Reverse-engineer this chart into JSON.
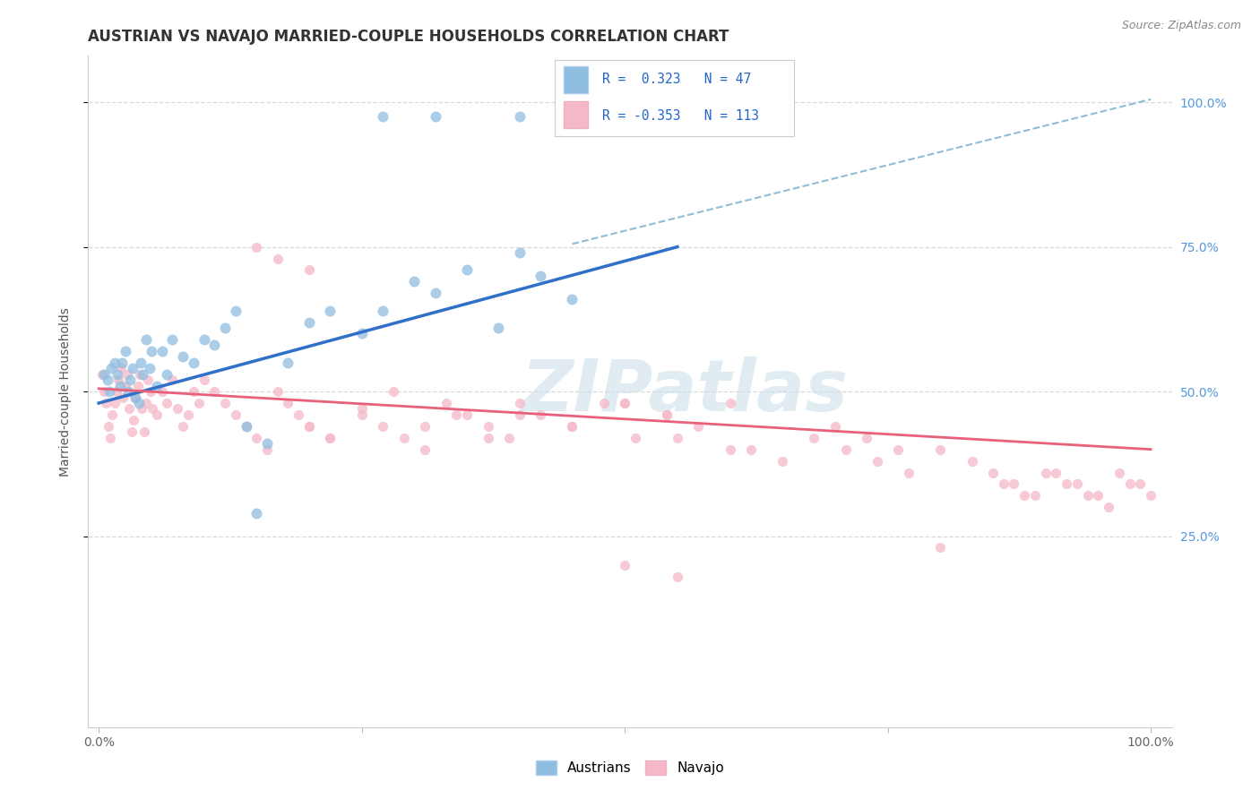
{
  "title": "AUSTRIAN VS NAVAJO MARRIED-COUPLE HOUSEHOLDS CORRELATION CHART",
  "source": "Source: ZipAtlas.com",
  "ylabel": "Married-couple Households",
  "xlim": [
    0.0,
    1.0
  ],
  "ylim": [
    -0.05,
    1.1
  ],
  "ytick_positions": [
    0.25,
    0.5,
    0.75,
    1.0
  ],
  "ytick_labels_right": [
    "25.0%",
    "50.0%",
    "75.0%",
    "100.0%"
  ],
  "xtick_labels": [
    "0.0%",
    "",
    "",
    "",
    "100.0%"
  ],
  "austrians_color": "#8fbde0",
  "navajo_color": "#f5b8c8",
  "austrians_line_color": "#3070c8",
  "navajo_line_color": "#e8607a",
  "dashed_line_color": "#90bcd8",
  "watermark_color": "#cde0ea",
  "background_color": "#ffffff",
  "grid_color": "#d8d8d8",
  "title_fontsize": 12,
  "source_fontsize": 9,
  "axis_label_fontsize": 10,
  "tick_fontsize": 10,
  "right_tick_color": "#5599dd",
  "aus_x": [
    0.005,
    0.008,
    0.01,
    0.012,
    0.015,
    0.018,
    0.02,
    0.022,
    0.025,
    0.028,
    0.03,
    0.032,
    0.035,
    0.038,
    0.04,
    0.042,
    0.045,
    0.048,
    0.05,
    0.055,
    0.06,
    0.065,
    0.07,
    0.08,
    0.09,
    0.1,
    0.11,
    0.12,
    0.13,
    0.14,
    0.15,
    0.16,
    0.18,
    0.2,
    0.22,
    0.25,
    0.27,
    0.3,
    0.32,
    0.35,
    0.38,
    0.4,
    0.42,
    0.45,
    0.27,
    0.32,
    0.4
  ],
  "aus_y": [
    0.53,
    0.52,
    0.5,
    0.54,
    0.55,
    0.53,
    0.51,
    0.55,
    0.57,
    0.5,
    0.52,
    0.54,
    0.49,
    0.48,
    0.55,
    0.53,
    0.59,
    0.54,
    0.57,
    0.51,
    0.57,
    0.53,
    0.59,
    0.56,
    0.55,
    0.59,
    0.58,
    0.61,
    0.64,
    0.44,
    0.29,
    0.41,
    0.55,
    0.62,
    0.64,
    0.6,
    0.64,
    0.69,
    0.67,
    0.71,
    0.61,
    0.74,
    0.7,
    0.66,
    0.975,
    0.975,
    0.975
  ],
  "nav_x": [
    0.003,
    0.005,
    0.007,
    0.009,
    0.011,
    0.013,
    0.015,
    0.017,
    0.019,
    0.021,
    0.023,
    0.025,
    0.027,
    0.029,
    0.031,
    0.033,
    0.035,
    0.037,
    0.039,
    0.041,
    0.043,
    0.045,
    0.047,
    0.049,
    0.051,
    0.055,
    0.06,
    0.065,
    0.07,
    0.075,
    0.08,
    0.085,
    0.09,
    0.095,
    0.1,
    0.11,
    0.12,
    0.13,
    0.14,
    0.15,
    0.16,
    0.17,
    0.18,
    0.19,
    0.2,
    0.15,
    0.17,
    0.2,
    0.22,
    0.25,
    0.2,
    0.22,
    0.25,
    0.27,
    0.29,
    0.31,
    0.33,
    0.35,
    0.37,
    0.39,
    0.28,
    0.31,
    0.34,
    0.37,
    0.4,
    0.42,
    0.45,
    0.48,
    0.51,
    0.54,
    0.57,
    0.6,
    0.4,
    0.45,
    0.5,
    0.55,
    0.6,
    0.62,
    0.65,
    0.68,
    0.71,
    0.74,
    0.77,
    0.8,
    0.83,
    0.7,
    0.73,
    0.76,
    0.85,
    0.87,
    0.89,
    0.91,
    0.93,
    0.95,
    0.97,
    0.99,
    0.86,
    0.88,
    0.9,
    0.92,
    0.94,
    0.96,
    0.98,
    1.0,
    0.5,
    0.54,
    0.5,
    0.55,
    0.8
  ],
  "nav_y": [
    0.53,
    0.5,
    0.48,
    0.44,
    0.42,
    0.46,
    0.48,
    0.5,
    0.52,
    0.54,
    0.49,
    0.51,
    0.53,
    0.47,
    0.43,
    0.45,
    0.49,
    0.51,
    0.53,
    0.47,
    0.43,
    0.48,
    0.52,
    0.5,
    0.47,
    0.46,
    0.5,
    0.48,
    0.52,
    0.47,
    0.44,
    0.46,
    0.5,
    0.48,
    0.52,
    0.5,
    0.48,
    0.46,
    0.44,
    0.42,
    0.4,
    0.5,
    0.48,
    0.46,
    0.44,
    0.75,
    0.73,
    0.71,
    0.42,
    0.47,
    0.44,
    0.42,
    0.46,
    0.44,
    0.42,
    0.4,
    0.48,
    0.46,
    0.44,
    0.42,
    0.5,
    0.44,
    0.46,
    0.42,
    0.48,
    0.46,
    0.44,
    0.48,
    0.42,
    0.46,
    0.44,
    0.48,
    0.46,
    0.44,
    0.48,
    0.42,
    0.4,
    0.4,
    0.38,
    0.42,
    0.4,
    0.38,
    0.36,
    0.4,
    0.38,
    0.44,
    0.42,
    0.4,
    0.36,
    0.34,
    0.32,
    0.36,
    0.34,
    0.32,
    0.36,
    0.34,
    0.34,
    0.32,
    0.36,
    0.34,
    0.32,
    0.3,
    0.34,
    0.32,
    0.48,
    0.46,
    0.2,
    0.18,
    0.23
  ]
}
